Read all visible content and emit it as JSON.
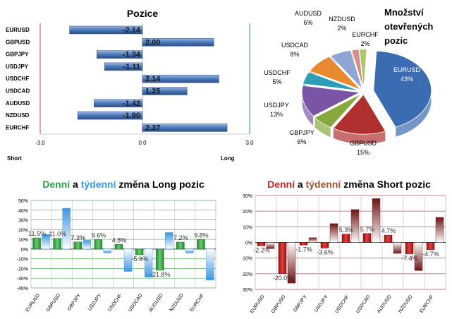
{
  "pozice": {
    "title": "Pozice",
    "pairs": [
      "EURUSD",
      "GBPUSD",
      "GBPJPY",
      "USDJPY",
      "USDCHF",
      "USDCAD",
      "AUDUSD",
      "NZDUSD",
      "EURCHF"
    ],
    "values": [
      -2.14,
      2.0,
      -1.34,
      -1.11,
      2.14,
      1.25,
      -1.42,
      -1.9,
      2.37
    ],
    "value_labels": [
      "-2.14",
      "2.00",
      "-1.34",
      "-1.11",
      "2.14",
      "1.25",
      "-1.42",
      "-1.90",
      "2.37"
    ],
    "xlim": [
      -3.0,
      3.0
    ],
    "ticks": [
      "-3.0",
      "0.0",
      "3.0"
    ],
    "short_label": "Short",
    "long_label": "Long"
  },
  "mnozstvi": {
    "title_lines": [
      "Množství",
      "otevřených",
      "pozic"
    ],
    "slices": [
      {
        "name": "EURUSD",
        "value": 43,
        "label": "43%",
        "color": "#3b6bb0"
      },
      {
        "name": "GBPUSD",
        "value": 15,
        "label": "15%",
        "color": "#b03030"
      },
      {
        "name": "GBPJPY",
        "value": 6,
        "label": "6%",
        "color": "#86a83c"
      },
      {
        "name": "USDJPY",
        "value": 13,
        "label": "13%",
        "color": "#7a55a6"
      },
      {
        "name": "USDCHF",
        "value": 5,
        "label": "5%",
        "color": "#2e9eb8"
      },
      {
        "name": "USDCAD",
        "value": 8,
        "label": "8%",
        "color": "#e7892e"
      },
      {
        "name": "AUDUSD",
        "value": 6,
        "label": "6%",
        "color": "#8fa6d4"
      },
      {
        "name": "NZDUSD",
        "value": 2,
        "label": "2%",
        "color": "#d98e8e"
      },
      {
        "name": "EURCHF",
        "value": 2,
        "label": "2%",
        "color": "#a7c86a"
      }
    ]
  },
  "long_change": {
    "title_parts": [
      {
        "text": "Denní",
        "color": "#2ba24c"
      },
      {
        "text": " a ",
        "color": "#000000"
      },
      {
        "text": "týdenní",
        "color": "#3399e6"
      },
      {
        "text": " změna Long pozic",
        "color": "#000000"
      }
    ],
    "pairs": [
      "EURUSD",
      "GBPUSD",
      "GBPJPY",
      "USDJPY",
      "USDCHF",
      "USDCAD",
      "AUDUSD",
      "NZDUSD",
      "EURCHF"
    ],
    "daily": [
      11.5,
      11.0,
      7.3,
      9.6,
      4.8,
      -5.9,
      -21.8,
      7.2,
      9.8
    ],
    "weekly": [
      15,
      42,
      9,
      -4,
      -23,
      -29,
      17,
      -4,
      -32
    ],
    "labels": [
      "11.5%",
      "11.0%",
      "7.3%",
      "9.6%",
      "4.8%",
      "-5.9%",
      "-21.8%",
      "7.2%",
      "9.8%"
    ],
    "ylim": [
      -40,
      50
    ],
    "yticks": [
      "50%",
      "40%",
      "30%",
      "20%",
      "10%",
      "0%",
      "-10%",
      "-20%",
      "-30%",
      "-40%"
    ]
  },
  "short_change": {
    "title_parts": [
      {
        "text": "Denní",
        "color": "#d42020"
      },
      {
        "text": " a ",
        "color": "#000000"
      },
      {
        "text": "týdenní",
        "color": "#a0522d"
      },
      {
        "text": " změna Short pozic",
        "color": "#000000"
      }
    ],
    "pairs": [
      "EURUSD",
      "GBPUSD",
      "GBPJPY",
      "USDJPY",
      "USDCHF",
      "USDCAD",
      "AUDUSD",
      "NZDUSD",
      "EURCHF"
    ],
    "daily": [
      -2.2,
      -20.0,
      -1.7,
      -3.6,
      5.3,
      5.7,
      4.7,
      -7.4,
      -4.7
    ],
    "weekly": [
      -4,
      -26,
      3,
      12,
      21,
      28,
      -7,
      -18,
      16
    ],
    "labels": [
      "-2.2%",
      "-20.0%",
      "-1.7%",
      "-3.6%",
      "5.3%",
      "5.7%",
      "4.7%",
      "-7.4%",
      "-4.7%"
    ],
    "ylim": [
      -30,
      30
    ],
    "yticks": [
      "30%",
      "20%",
      "10%",
      "0%",
      "10%",
      "20%",
      "30%"
    ]
  },
  "chart_data": [
    {
      "type": "bar",
      "title": "Pozice",
      "categories": [
        "EURUSD",
        "GBPUSD",
        "GBPJPY",
        "USDJPY",
        "USDCHF",
        "USDCAD",
        "AUDUSD",
        "NZDUSD",
        "EURCHF"
      ],
      "values": [
        -2.14,
        2.0,
        -1.34,
        -1.11,
        2.14,
        1.25,
        -1.42,
        -1.9,
        2.37
      ],
      "xlim": [
        -3.0,
        3.0
      ]
    },
    {
      "type": "pie",
      "title": "Množství otevřených pozic",
      "categories": [
        "EURUSD",
        "GBPUSD",
        "GBPJPY",
        "USDJPY",
        "USDCHF",
        "USDCAD",
        "AUDUSD",
        "NZDUSD",
        "EURCHF"
      ],
      "values": [
        43,
        15,
        6,
        13,
        5,
        8,
        6,
        2,
        2
      ]
    },
    {
      "type": "bar",
      "title": "Denní a týdenní změna Long pozic",
      "categories": [
        "EURUSD",
        "GBPUSD",
        "GBPJPY",
        "USDJPY",
        "USDCHF",
        "USDCAD",
        "AUDUSD",
        "NZDUSD",
        "EURCHF"
      ],
      "series": [
        {
          "values": [
            11.5,
            11.0,
            7.3,
            9.6,
            4.8,
            -5.9,
            -21.8,
            7.2,
            9.8
          ]
        },
        {
          "values": [
            15,
            42,
            9,
            -4,
            -23,
            -29,
            17,
            -4,
            -32
          ]
        }
      ],
      "ylim": [
        -40,
        50
      ]
    },
    {
      "type": "bar",
      "title": "Denní a týdenní změna Short pozic",
      "categories": [
        "EURUSD",
        "GBPUSD",
        "GBPJPY",
        "USDJPY",
        "USDCHF",
        "USDCAD",
        "AUDUSD",
        "NZDUSD",
        "EURCHF"
      ],
      "series": [
        {
          "values": [
            -2.2,
            -20.0,
            -1.7,
            -3.6,
            5.3,
            5.7,
            4.7,
            -7.4,
            -4.7
          ]
        },
        {
          "values": [
            -4,
            -26,
            3,
            12,
            21,
            28,
            -7,
            -18,
            16
          ]
        }
      ],
      "ylim": [
        -30,
        30
      ]
    }
  ]
}
